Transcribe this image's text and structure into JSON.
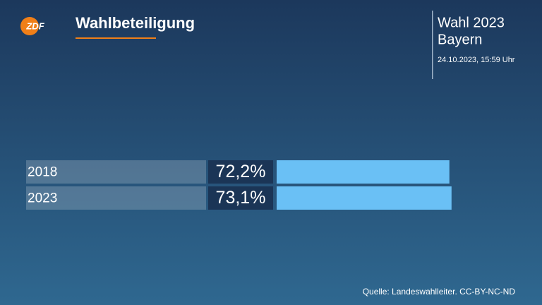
{
  "logo": "ZDF",
  "header": {
    "election": "Wahl 2023",
    "region": "Bayern",
    "timestamp": "24.10.2023, 15:59 Uhr"
  },
  "source": "Quelle: Landeswahlleiter. CC-BY-NC-ND",
  "chart_data": {
    "type": "bar",
    "orientation": "horizontal",
    "title": "Wahlbeteiligung",
    "categories": [
      "2018",
      "2023"
    ],
    "values": [
      72.2,
      73.1
    ],
    "value_labels": [
      "72,2%",
      "73,1%"
    ],
    "color": "#6ac0f5",
    "xlim": [
      0,
      100
    ]
  }
}
